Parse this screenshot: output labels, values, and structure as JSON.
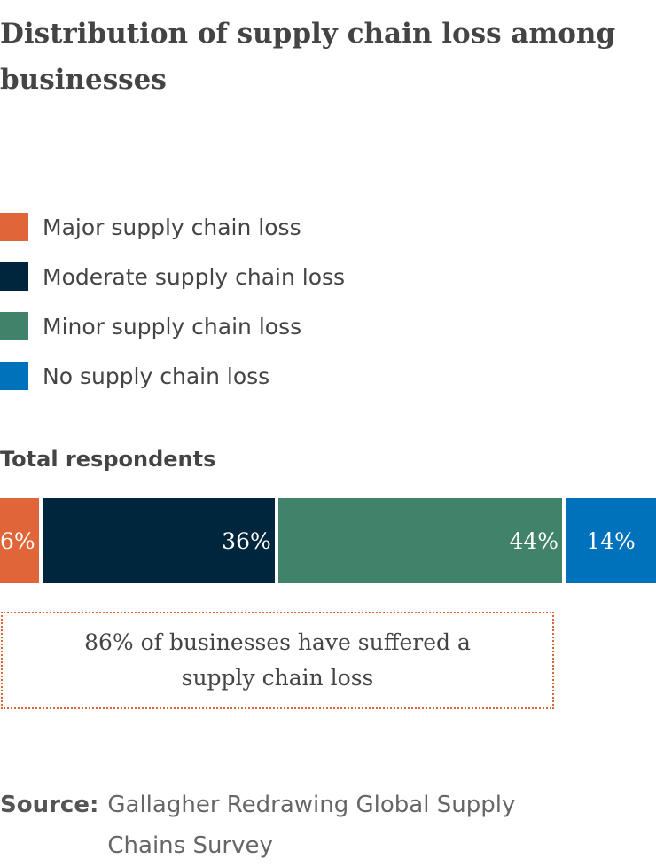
{
  "chart_data": {
    "type": "bar",
    "orientation": "horizontal-stacked-100",
    "title": "Distribution of supply chain loss among businesses",
    "category": "Total respondents",
    "series": [
      {
        "name": "Major supply chain loss",
        "value": 6,
        "label": "6%",
        "color": "#E0663A"
      },
      {
        "name": "Moderate supply chain loss",
        "value": 36,
        "label": "36%",
        "color": "#00263E"
      },
      {
        "name": "Minor supply chain loss",
        "value": 44,
        "label": "44%",
        "color": "#41836A"
      },
      {
        "name": "No supply chain loss",
        "value": 14,
        "label": "14%",
        "color": "#0072BB"
      }
    ],
    "annotation": "86% of businesses have suffered a supply chain loss",
    "legend": "top"
  },
  "source_label": "Source:",
  "source_text": "Gallagher Redrawing Global Supply Chains Survey"
}
